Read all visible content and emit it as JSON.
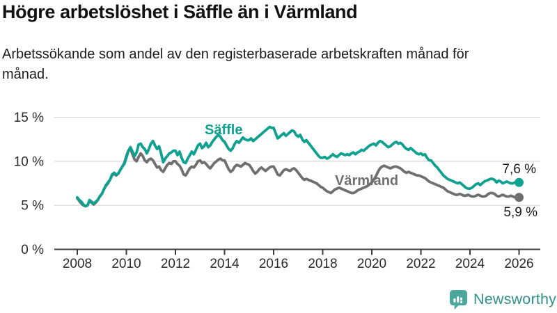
{
  "header": {
    "title": "Högre arbetslöshet i Säffle än i Värmland",
    "subtitle": "Arbetssökande som andel av den registerbaserade arbetskraften månad för månad."
  },
  "chart_data": {
    "type": "line",
    "title": "Högre arbetslöshet i Säffle än i Värmland",
    "subtitle": "Arbetssökande som andel av den registerbaserade arbetskraften månad för månad.",
    "unit": "%",
    "x_start_year": 2008,
    "x_end_year": 2026,
    "points_per_year": 12,
    "grid": "horizontal",
    "legend_position": "inline-labels",
    "ylim": [
      0,
      16.5
    ],
    "y_tick_labels": [
      "15 %",
      "10 %",
      "5 %",
      "0 %"
    ],
    "x_ticks": [
      "2008",
      "2010",
      "2012",
      "2014",
      "2016",
      "2018",
      "2020",
      "2022",
      "2024",
      "2026"
    ],
    "colors": {
      "saffle": "#0ea190",
      "varmland": "#6f6f6f",
      "grid": "#d9d9d9",
      "axis": "#3c3c3c"
    },
    "series": [
      {
        "name": "Säffle",
        "color": "#0ea190",
        "end_label": "7,6 %",
        "end_value": 7.6,
        "values": [
          5.9,
          5.6,
          5.4,
          5.1,
          4.9,
          5.0,
          5.6,
          5.4,
          5.2,
          5.4,
          5.6,
          6.0,
          6.3,
          6.8,
          7.3,
          7.6,
          7.9,
          8.5,
          8.7,
          8.5,
          8.6,
          9.0,
          9.4,
          9.7,
          10.4,
          11.2,
          11.6,
          11.1,
          10.6,
          11.0,
          11.9,
          12.0,
          11.6,
          11.4,
          10.9,
          11.4,
          12.0,
          12.3,
          11.8,
          11.4,
          11.7,
          10.9,
          9.9,
          10.3,
          10.6,
          10.9,
          11.0,
          11.2,
          11.2,
          10.7,
          11.1,
          10.4,
          9.9,
          9.8,
          10.3,
          10.7,
          11.1,
          10.8,
          11.3,
          11.8,
          12.0,
          11.5,
          11.7,
          12.1,
          11.6,
          11.8,
          12.2,
          12.5,
          12.8,
          13.0,
          12.8,
          12.4,
          12.2,
          11.8,
          11.4,
          11.2,
          11.5,
          12.0,
          12.3,
          12.1,
          12.4,
          12.7,
          12.5,
          12.4,
          12.4,
          12.6,
          12.3,
          12.5,
          12.7,
          12.9,
          13.1,
          13.3,
          13.5,
          13.7,
          13.9,
          13.8,
          13.8,
          13.2,
          12.6,
          12.8,
          13.0,
          13.2,
          12.9,
          13.1,
          13.3,
          13.5,
          13.4,
          13.0,
          12.8,
          13.0,
          12.5,
          12.2,
          12.4,
          12.1,
          11.8,
          11.5,
          11.2,
          10.9,
          10.6,
          10.4,
          10.4,
          10.5,
          10.3,
          10.4,
          10.6,
          10.8,
          10.6,
          10.5,
          10.7,
          10.9,
          10.8,
          10.7,
          10.8,
          10.7,
          10.9,
          11.0,
          10.8,
          11.0,
          11.1,
          11.3,
          11.2,
          11.4,
          11.6,
          11.8,
          11.9,
          12.0,
          11.8,
          12.1,
          12.3,
          12.2,
          12.0,
          11.8,
          11.6,
          11.7,
          11.9,
          12.1,
          12.2,
          12.0,
          12.1,
          11.9,
          11.6,
          11.4,
          11.3,
          11.5,
          11.3,
          11.1,
          10.9,
          10.8,
          10.9,
          10.7,
          10.8,
          10.4,
          10.1,
          10.1,
          9.8,
          9.5,
          9.3,
          9.0,
          8.7,
          8.4,
          8.2,
          8.0,
          7.9,
          7.8,
          7.7,
          7.6,
          7.5,
          7.6,
          7.4,
          7.2,
          7.0,
          6.9,
          6.9,
          7.0,
          7.2,
          7.4,
          7.5,
          7.3,
          7.5,
          7.7,
          7.8,
          7.9,
          8.0,
          8.0,
          7.9,
          7.6,
          7.8,
          7.7,
          7.5,
          7.6,
          7.7,
          7.6,
          7.5,
          7.5,
          7.6,
          7.6,
          7.6
        ]
      },
      {
        "name": "Värmland",
        "color": "#6f6f6f",
        "end_label": "5,9 %",
        "end_value": 5.9,
        "values": [
          5.8,
          5.5,
          5.2,
          5.0,
          4.9,
          5.0,
          5.5,
          5.3,
          5.1,
          5.3,
          5.6,
          6.0,
          6.3,
          6.8,
          7.2,
          7.5,
          7.9,
          8.4,
          8.6,
          8.4,
          8.6,
          9.0,
          9.4,
          9.8,
          10.6,
          11.2,
          11.4,
          10.8,
          10.2,
          10.0,
          10.5,
          10.9,
          10.6,
          10.1,
          9.9,
          10.2,
          10.3,
          10.1,
          9.7,
          9.3,
          9.4,
          9.0,
          8.8,
          9.2,
          9.6,
          9.8,
          9.7,
          10.0,
          10.0,
          9.7,
          9.5,
          9.1,
          8.5,
          8.4,
          8.8,
          9.2,
          9.4,
          9.3,
          9.6,
          10.0,
          10.1,
          9.8,
          9.9,
          9.7,
          9.4,
          9.2,
          9.5,
          9.8,
          10.0,
          10.2,
          10.3,
          10.1,
          10.1,
          9.6,
          9.1,
          8.8,
          9.0,
          9.4,
          9.6,
          9.5,
          9.4,
          9.6,
          9.8,
          9.7,
          9.6,
          9.3,
          8.9,
          8.6,
          8.8,
          9.1,
          9.3,
          9.1,
          8.9,
          9.1,
          9.3,
          9.4,
          9.4,
          9.0,
          8.5,
          8.4,
          8.7,
          9.0,
          9.1,
          9.0,
          8.9,
          9.1,
          9.2,
          9.0,
          8.7,
          8.4,
          8.1,
          7.9,
          8.0,
          7.9,
          7.8,
          7.7,
          7.6,
          7.5,
          7.3,
          7.1,
          7.0,
          6.8,
          6.6,
          6.5,
          6.4,
          6.6,
          6.8,
          6.9,
          7.0,
          6.9,
          6.8,
          6.7,
          6.6,
          6.5,
          6.4,
          6.4,
          6.5,
          6.7,
          6.8,
          6.9,
          7.0,
          7.1,
          7.2,
          7.4,
          7.6,
          7.9,
          8.3,
          8.8,
          9.2,
          9.4,
          9.5,
          9.4,
          9.3,
          9.2,
          9.3,
          9.4,
          9.4,
          9.3,
          9.2,
          9.0,
          8.8,
          8.7,
          8.8,
          8.7,
          8.6,
          8.5,
          8.4,
          8.4,
          8.3,
          8.2,
          8.1,
          7.9,
          7.7,
          7.6,
          7.5,
          7.4,
          7.3,
          7.2,
          7.1,
          7.0,
          6.8,
          6.6,
          6.5,
          6.4,
          6.3,
          6.2,
          6.2,
          6.3,
          6.2,
          6.1,
          6.1,
          6.2,
          6.1,
          6.0,
          6.0,
          6.1,
          6.2,
          6.1,
          6.0,
          6.0,
          6.1,
          6.3,
          6.4,
          6.4,
          6.3,
          6.1,
          6.0,
          6.1,
          6.2,
          6.1,
          6.0,
          6.0,
          6.1,
          6.0,
          5.9,
          5.9,
          5.9
        ]
      }
    ]
  },
  "footer": {
    "brand": "Newsworthy",
    "brand_color": "#31908a",
    "icon": "bar-chart-speech-bubble-icon",
    "icon_color": "#4ba69d"
  }
}
